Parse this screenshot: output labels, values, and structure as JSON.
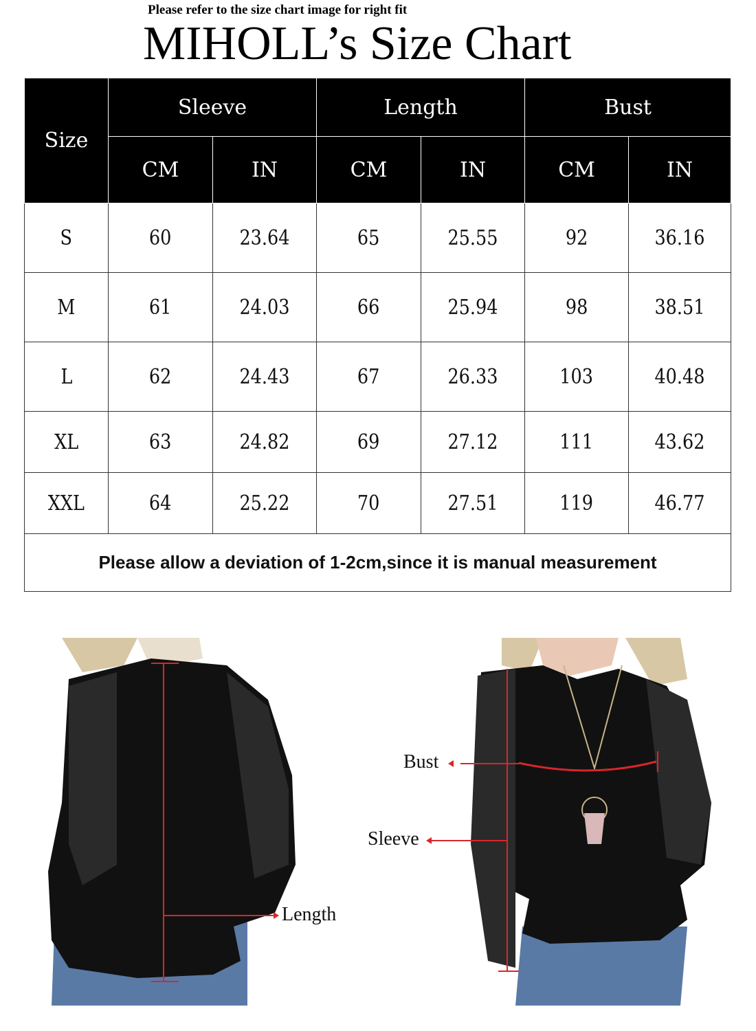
{
  "header": {
    "note": "Please refer to the size chart image for right fit",
    "title": "MIHOLL’s Size Chart"
  },
  "table": {
    "size_header": "Size",
    "groups": [
      "Sleeve",
      "Length",
      "Bust"
    ],
    "units": [
      "CM",
      "IN",
      "CM",
      "IN",
      "CM",
      "IN"
    ],
    "rows": [
      {
        "size": "S",
        "values": [
          "60",
          "23.64",
          "65",
          "25.55",
          "92",
          "36.16"
        ]
      },
      {
        "size": "M",
        "values": [
          "61",
          "24.03",
          "66",
          "25.94",
          "98",
          "38.51"
        ]
      },
      {
        "size": "L",
        "values": [
          "62",
          "24.43",
          "67",
          "26.33",
          "103",
          "40.48"
        ]
      },
      {
        "size": "XL",
        "values": [
          "63",
          "24.82",
          "69",
          "27.12",
          "111",
          "43.62"
        ]
      },
      {
        "size": "XXL",
        "values": [
          "64",
          "25.22",
          "70",
          "27.51",
          "119",
          "46.77"
        ]
      }
    ],
    "footer": "Please allow a deviation of 1-2cm,since it is manual measurement"
  },
  "photos": {
    "back_label_length": "Length",
    "front_label_bust": "Bust",
    "front_label_sleeve": "Sleeve"
  },
  "colors": {
    "header_bg": "#000000",
    "measure_line": "#d9262b"
  }
}
